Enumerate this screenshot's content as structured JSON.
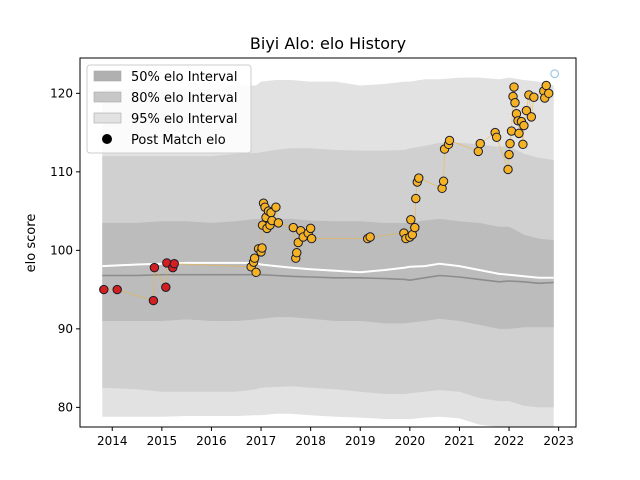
{
  "chart_data": {
    "type": "scatter",
    "title": "Biyi Alo: elo History",
    "xlabel": "",
    "ylabel": "elo score",
    "xlim": [
      2013.35,
      2023.35
    ],
    "ylim": [
      77.5,
      124.5
    ],
    "x_ticks": [
      2014,
      2015,
      2016,
      2017,
      2018,
      2019,
      2020,
      2021,
      2022,
      2023
    ],
    "y_ticks": [
      80,
      90,
      100,
      110,
      120
    ],
    "grid": false,
    "legend_placement": "top-left",
    "legend": [
      {
        "label": "50% elo Interval",
        "kind": "band",
        "color": "#b0b0b0"
      },
      {
        "label": "80% elo Interval",
        "kind": "band",
        "color": "#c7c7c7"
      },
      {
        "label": "95% elo Interval",
        "kind": "band",
        "color": "#e2e2e2"
      },
      {
        "label": "Post Match elo",
        "kind": "marker",
        "color": "#000000"
      }
    ],
    "colors": {
      "band_95": "#e2e2e2",
      "band_80": "#d0d0d0",
      "band_50": "#bcbcbc",
      "mean_line": "#8c8c8c",
      "current_line": "#ffffff",
      "early_point_fill": "#d41f1f",
      "point_fill": "#f5b324",
      "point_edge": "#1a1a2e",
      "projection_point": "#9ecae1"
    },
    "bands": {
      "x": [
        2013.8,
        2014.5,
        2015.0,
        2015.5,
        2016.0,
        2016.5,
        2016.9,
        2017.0,
        2017.3,
        2017.6,
        2018.0,
        2018.5,
        2019.0,
        2019.5,
        2019.9,
        2020.0,
        2020.3,
        2020.6,
        2021.0,
        2021.4,
        2021.8,
        2022.0,
        2022.3,
        2022.6,
        2022.9
      ],
      "p95_hi": [
        120.5,
        120.5,
        120.5,
        120.5,
        120.5,
        121.0,
        121.0,
        121.5,
        121.7,
        121.7,
        121.5,
        121.5,
        121.0,
        121.2,
        121.5,
        121.5,
        121.8,
        121.8,
        122.0,
        122.0,
        121.8,
        122.0,
        121.7,
        121.5,
        121.0
      ],
      "p80_hi": [
        112.0,
        112.0,
        112.0,
        112.0,
        112.0,
        112.3,
        112.4,
        112.5,
        112.8,
        113.0,
        113.0,
        112.8,
        112.7,
        112.7,
        112.8,
        113.0,
        113.3,
        113.7,
        113.7,
        113.5,
        113.2,
        113.3,
        112.3,
        111.8,
        111.5
      ],
      "p50_hi": [
        103.5,
        103.5,
        103.7,
        103.7,
        103.5,
        103.7,
        104.0,
        104.0,
        104.0,
        104.0,
        103.8,
        103.7,
        103.7,
        103.5,
        103.5,
        103.5,
        103.8,
        104.0,
        103.7,
        103.5,
        103.0,
        103.0,
        102.0,
        101.5,
        101.3
      ],
      "p50_lo": [
        91.0,
        91.0,
        91.0,
        91.2,
        91.0,
        91.0,
        91.2,
        91.3,
        91.5,
        91.5,
        91.3,
        91.0,
        91.0,
        90.7,
        90.7,
        90.8,
        91.0,
        91.3,
        91.0,
        90.5,
        90.0,
        90.0,
        90.2,
        90.2,
        90.2
      ],
      "p80_lo": [
        82.5,
        82.3,
        82.0,
        82.0,
        82.0,
        82.0,
        82.3,
        82.5,
        82.6,
        82.7,
        82.5,
        82.3,
        82.0,
        81.7,
        81.7,
        81.8,
        82.0,
        82.2,
        82.0,
        81.2,
        80.8,
        80.8,
        80.2,
        80.0,
        80.0
      ],
      "p95_lo": [
        78.8,
        78.8,
        78.8,
        78.9,
        78.9,
        78.9,
        79.0,
        79.0,
        79.2,
        79.2,
        79.0,
        78.8,
        78.7,
        78.5,
        78.5,
        78.5,
        78.7,
        78.8,
        78.6,
        77.8,
        77.5,
        77.5,
        76.8,
        76.5,
        76.5
      ],
      "mean": [
        96.8,
        96.8,
        96.9,
        96.9,
        96.9,
        96.9,
        96.9,
        96.9,
        96.8,
        96.7,
        96.6,
        96.5,
        96.5,
        96.4,
        96.3,
        96.2,
        96.5,
        96.8,
        96.6,
        96.3,
        96.0,
        96.1,
        96.0,
        95.8,
        95.9
      ],
      "current": [
        98.0,
        98.2,
        98.3,
        98.4,
        98.4,
        98.4,
        98.4,
        98.2,
        98.0,
        97.8,
        97.6,
        97.4,
        97.2,
        97.5,
        97.8,
        97.9,
        98.0,
        98.3,
        98.0,
        97.5,
        97.0,
        96.9,
        96.7,
        96.5,
        96.5
      ]
    },
    "series": [
      {
        "fill": "#d41f1f",
        "points": [
          [
            2013.83,
            95.0
          ],
          [
            2014.1,
            95.0
          ],
          [
            2014.83,
            93.6
          ],
          [
            2014.85,
            97.8
          ],
          [
            2015.08,
            95.3
          ],
          [
            2015.1,
            98.4
          ],
          [
            2015.22,
            97.8
          ],
          [
            2015.25,
            98.3
          ]
        ]
      },
      {
        "fill": "#f5b324",
        "points": [
          [
            2016.8,
            97.9
          ],
          [
            2016.85,
            98.5
          ],
          [
            2016.87,
            99.0
          ],
          [
            2016.9,
            97.2
          ],
          [
            2016.95,
            100.2
          ],
          [
            2017.0,
            99.8
          ],
          [
            2017.02,
            100.3
          ],
          [
            2017.03,
            103.2
          ],
          [
            2017.05,
            106.0
          ],
          [
            2017.08,
            105.5
          ],
          [
            2017.1,
            104.2
          ],
          [
            2017.12,
            102.8
          ],
          [
            2017.15,
            105.0
          ],
          [
            2017.18,
            103.2
          ],
          [
            2017.2,
            104.8
          ],
          [
            2017.22,
            103.8
          ],
          [
            2017.3,
            105.5
          ],
          [
            2017.35,
            103.5
          ],
          [
            2017.65,
            102.9
          ],
          [
            2017.7,
            99.0
          ],
          [
            2017.72,
            99.7
          ],
          [
            2017.75,
            101.0
          ],
          [
            2017.8,
            102.5
          ],
          [
            2017.85,
            101.7
          ],
          [
            2017.95,
            102.2
          ],
          [
            2018.0,
            102.8
          ],
          [
            2018.02,
            101.5
          ],
          [
            2019.15,
            101.5
          ],
          [
            2019.2,
            101.7
          ],
          [
            2019.88,
            102.2
          ],
          [
            2019.92,
            101.5
          ],
          [
            2020.0,
            101.7
          ],
          [
            2020.02,
            103.9
          ],
          [
            2020.05,
            102.0
          ],
          [
            2020.1,
            102.9
          ],
          [
            2020.12,
            106.6
          ],
          [
            2020.15,
            108.7
          ],
          [
            2020.18,
            109.2
          ],
          [
            2020.65,
            107.9
          ],
          [
            2020.68,
            108.8
          ],
          [
            2020.7,
            112.9
          ],
          [
            2020.78,
            113.5
          ],
          [
            2020.8,
            114.0
          ],
          [
            2021.38,
            112.6
          ],
          [
            2021.42,
            113.6
          ],
          [
            2021.72,
            115.0
          ],
          [
            2021.75,
            114.4
          ],
          [
            2021.98,
            110.3
          ],
          [
            2022.0,
            112.2
          ],
          [
            2022.02,
            113.6
          ],
          [
            2022.05,
            115.2
          ],
          [
            2022.08,
            119.6
          ],
          [
            2022.1,
            120.8
          ],
          [
            2022.12,
            118.8
          ],
          [
            2022.15,
            117.4
          ],
          [
            2022.18,
            116.5
          ],
          [
            2022.2,
            114.9
          ],
          [
            2022.25,
            116.4
          ],
          [
            2022.28,
            113.5
          ],
          [
            2022.3,
            115.9
          ],
          [
            2022.35,
            117.8
          ],
          [
            2022.4,
            119.8
          ],
          [
            2022.45,
            117.0
          ],
          [
            2022.5,
            119.5
          ],
          [
            2022.7,
            120.3
          ],
          [
            2022.72,
            119.4
          ],
          [
            2022.75,
            121.0
          ],
          [
            2022.8,
            120.0
          ]
        ]
      },
      {
        "fill": "none",
        "points": [
          [
            2022.92,
            122.5
          ]
        ]
      }
    ]
  }
}
